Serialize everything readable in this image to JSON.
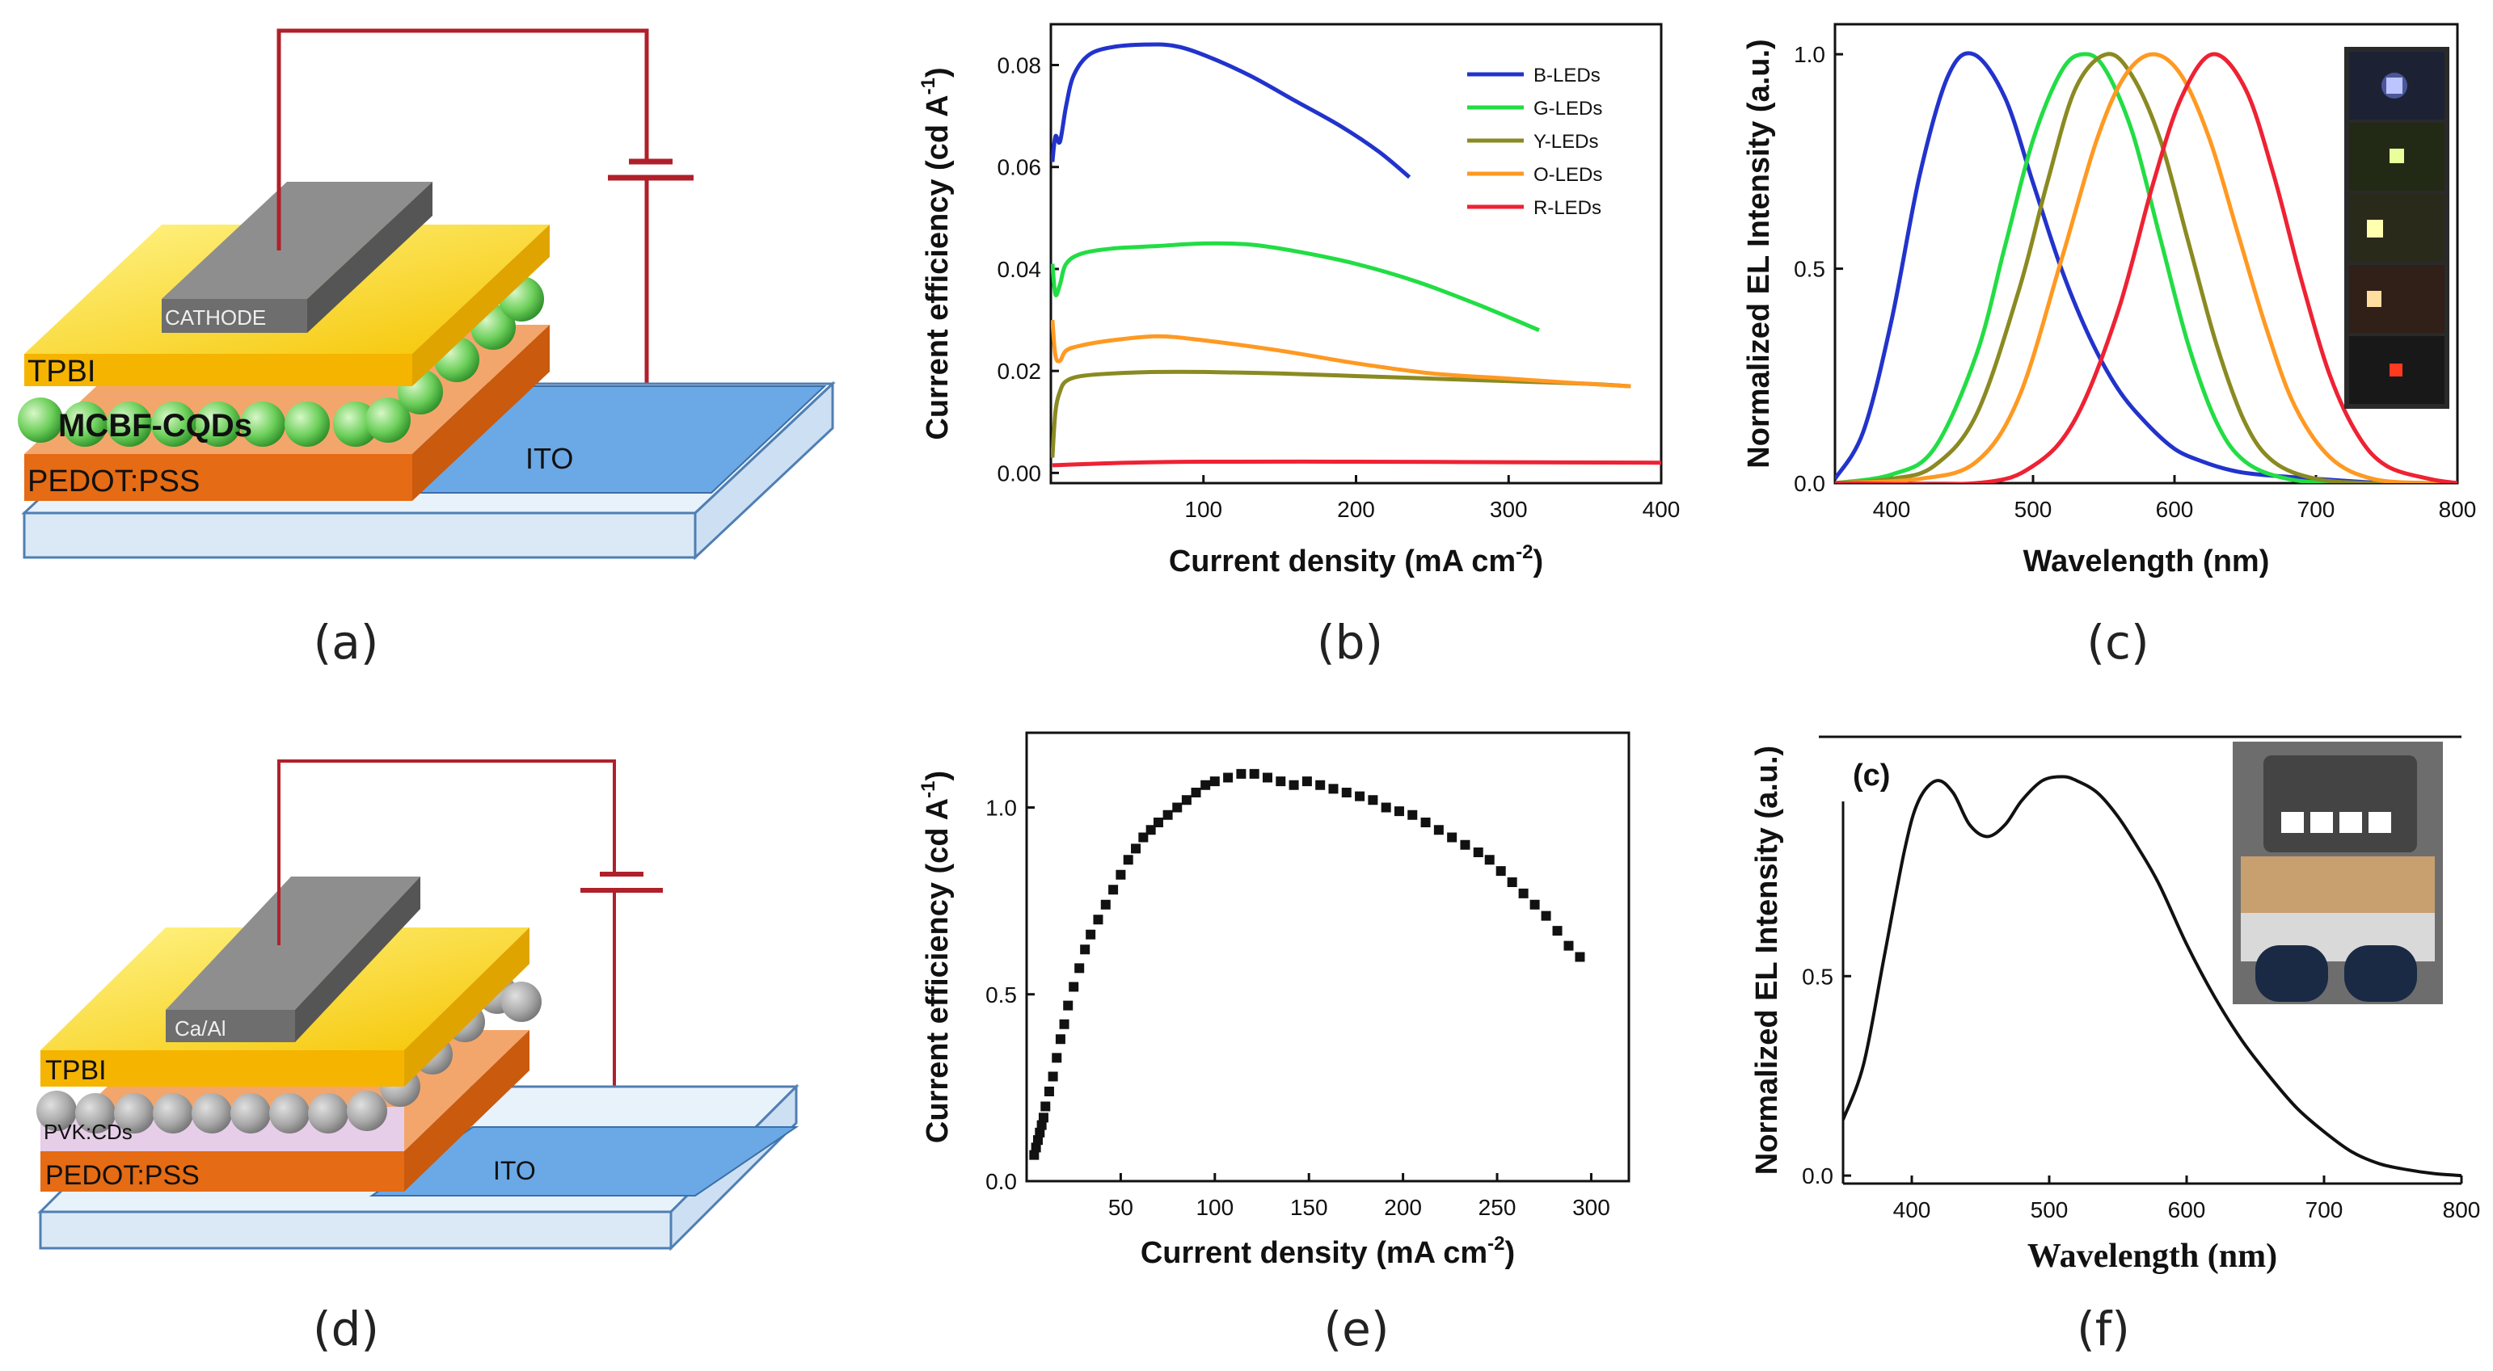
{
  "panel_labels": [
    "(a)",
    "(b)",
    "(c)",
    "(d)",
    "(e)",
    "(f)"
  ],
  "diagram_a": {
    "layers": {
      "cathode": "CATHODE",
      "tpbi": "TPBI",
      "emitter": "MCBF-CQDs",
      "pedot": "PEDOT:PSS",
      "ito": "ITO"
    }
  },
  "diagram_d": {
    "layers": {
      "cathode": "Ca/Al",
      "tpbi": "TPBI",
      "emitter": "PVK:CDs",
      "pedot": "PEDOT:PSS",
      "ito": "ITO"
    }
  },
  "colors": {
    "blue": "#2233cc",
    "green": "#22dd44",
    "yellow": "#8a8a22",
    "orange": "#ff9922",
    "red": "#ee2233",
    "black": "#111111",
    "wire": "#b0202a"
  },
  "chart_data": [
    {
      "id": "b",
      "type": "line",
      "xlabel": "Current density (mA cm",
      "xlabel_sup": "-2",
      "xlabel_end": ")",
      "ylabel": "Current efficiency (cd A",
      "ylabel_sup": "-1",
      "ylabel_end": ")",
      "xlim": [
        0,
        400
      ],
      "ylim": [
        -0.002,
        0.088
      ],
      "xticks": [
        100,
        200,
        300,
        400
      ],
      "yticks": [
        0.0,
        0.02,
        0.04,
        0.06,
        0.08
      ],
      "ytick_labels": [
        "0.00",
        "0.02",
        "0.04",
        "0.06",
        "0.08"
      ],
      "legend": "top-right",
      "series": [
        {
          "name": "B-LEDs",
          "color": "blue",
          "x": [
            1,
            3,
            6,
            10,
            15,
            25,
            40,
            60,
            80,
            100,
            130,
            160,
            190,
            215,
            235
          ],
          "y": [
            0.061,
            0.066,
            0.065,
            0.072,
            0.078,
            0.082,
            0.0835,
            0.084,
            0.0838,
            0.082,
            0.078,
            0.073,
            0.068,
            0.063,
            0.058
          ]
        },
        {
          "name": "G-LEDs",
          "color": "green",
          "x": [
            1,
            3,
            6,
            10,
            20,
            40,
            70,
            100,
            130,
            160,
            200,
            240,
            280,
            320
          ],
          "y": [
            0.041,
            0.035,
            0.037,
            0.041,
            0.043,
            0.044,
            0.0445,
            0.045,
            0.0448,
            0.0435,
            0.041,
            0.0375,
            0.033,
            0.028
          ]
        },
        {
          "name": "Y-LEDs",
          "color": "yellow",
          "x": [
            1,
            3,
            6,
            10,
            20,
            40,
            70,
            100,
            150,
            200,
            250,
            300,
            350,
            380
          ],
          "y": [
            0.003,
            0.012,
            0.016,
            0.018,
            0.019,
            0.0195,
            0.0198,
            0.0198,
            0.0195,
            0.019,
            0.0185,
            0.018,
            0.0175,
            0.017
          ]
        },
        {
          "name": "O-LEDs",
          "color": "orange",
          "x": [
            1,
            3,
            6,
            10,
            20,
            40,
            70,
            100,
            150,
            200,
            250,
            300,
            350,
            380
          ],
          "y": [
            0.03,
            0.023,
            0.022,
            0.024,
            0.025,
            0.026,
            0.0268,
            0.026,
            0.024,
            0.0215,
            0.0195,
            0.0185,
            0.0175,
            0.017
          ]
        },
        {
          "name": "R-LEDs",
          "color": "red",
          "x": [
            1,
            50,
            100,
            200,
            300,
            400
          ],
          "y": [
            0.0015,
            0.002,
            0.0022,
            0.0022,
            0.0021,
            0.002
          ]
        }
      ]
    },
    {
      "id": "c",
      "type": "line",
      "xlabel": "Wavelength (nm)",
      "ylabel": "Normalized EL Intensity (a.u.)",
      "xlim": [
        360,
        800
      ],
      "ylim": [
        0,
        1.07
      ],
      "xticks": [
        400,
        500,
        600,
        700,
        800
      ],
      "yticks": [
        0.0,
        0.5,
        1.0
      ],
      "ytick_labels": [
        "0.0",
        "0.5",
        "1.0"
      ],
      "series": [
        {
          "color": "blue",
          "x": [
            360,
            380,
            400,
            420,
            440,
            458,
            480,
            500,
            520,
            540,
            560,
            580,
            600,
            620,
            640,
            660,
            700,
            750,
            800
          ],
          "y": [
            0.01,
            0.12,
            0.38,
            0.72,
            0.95,
            1.0,
            0.9,
            0.7,
            0.5,
            0.34,
            0.22,
            0.14,
            0.08,
            0.05,
            0.03,
            0.02,
            0.01,
            0.0,
            0.0
          ]
        },
        {
          "color": "green",
          "x": [
            360,
            400,
            430,
            460,
            480,
            500,
            520,
            535,
            550,
            570,
            590,
            610,
            630,
            650,
            680,
            720,
            800
          ],
          "y": [
            0.0,
            0.02,
            0.08,
            0.3,
            0.55,
            0.8,
            0.96,
            1.0,
            0.97,
            0.82,
            0.57,
            0.32,
            0.14,
            0.05,
            0.01,
            0.0,
            0.0
          ]
        },
        {
          "color": "yellow",
          "x": [
            360,
            400,
            430,
            460,
            490,
            510,
            530,
            552,
            570,
            590,
            610,
            630,
            650,
            670,
            700,
            740,
            800
          ],
          "y": [
            0.0,
            0.01,
            0.04,
            0.16,
            0.45,
            0.7,
            0.92,
            1.0,
            0.95,
            0.8,
            0.56,
            0.32,
            0.14,
            0.05,
            0.01,
            0.0,
            0.0
          ]
        },
        {
          "color": "orange",
          "x": [
            360,
            420,
            460,
            490,
            520,
            545,
            565,
            585,
            605,
            625,
            645,
            665,
            685,
            710,
            740,
            780,
            800
          ],
          "y": [
            0.0,
            0.01,
            0.05,
            0.2,
            0.52,
            0.8,
            0.95,
            1.0,
            0.95,
            0.8,
            0.58,
            0.36,
            0.18,
            0.06,
            0.01,
            0.0,
            0.0
          ]
        },
        {
          "color": "red",
          "x": [
            360,
            460,
            500,
            530,
            560,
            585,
            605,
            627,
            650,
            670,
            690,
            710,
            730,
            750,
            780,
            800
          ],
          "y": [
            0.0,
            0.0,
            0.04,
            0.15,
            0.4,
            0.7,
            0.9,
            1.0,
            0.92,
            0.72,
            0.47,
            0.25,
            0.11,
            0.04,
            0.01,
            0.0
          ]
        }
      ]
    },
    {
      "id": "e",
      "type": "scatter",
      "xlabel": "Current density (mA cm",
      "xlabel_sup": "-2",
      "xlabel_end": ")",
      "ylabel": "Current efficiency (cd A",
      "ylabel_sup": "-1",
      "ylabel_end": ")",
      "xlim": [
        0,
        320
      ],
      "ylim": [
        0,
        1.2
      ],
      "xticks": [
        50,
        100,
        150,
        200,
        250,
        300
      ],
      "yticks": [
        0.0,
        0.5,
        1.0
      ],
      "ytick_labels": [
        "0.0",
        "0.5",
        "1.0"
      ],
      "series": [
        {
          "color": "black",
          "x": [
            4,
            5,
            6,
            7,
            8,
            9,
            10,
            12,
            14,
            16,
            18,
            20,
            22,
            25,
            28,
            31,
            34,
            38,
            42,
            46,
            50,
            54,
            58,
            62,
            66,
            70,
            75,
            80,
            85,
            90,
            95,
            100,
            107,
            114,
            121,
            128,
            135,
            142,
            149,
            156,
            163,
            170,
            177,
            184,
            191,
            198,
            205,
            212,
            219,
            226,
            233,
            240,
            246,
            252,
            258,
            264,
            270,
            276,
            282,
            288,
            294
          ],
          "y": [
            0.07,
            0.09,
            0.11,
            0.13,
            0.15,
            0.17,
            0.2,
            0.24,
            0.28,
            0.33,
            0.38,
            0.42,
            0.47,
            0.52,
            0.57,
            0.62,
            0.66,
            0.7,
            0.74,
            0.78,
            0.82,
            0.86,
            0.89,
            0.92,
            0.94,
            0.96,
            0.98,
            1.0,
            1.02,
            1.04,
            1.06,
            1.07,
            1.08,
            1.09,
            1.09,
            1.08,
            1.07,
            1.06,
            1.07,
            1.06,
            1.05,
            1.04,
            1.03,
            1.02,
            1.0,
            0.99,
            0.98,
            0.96,
            0.94,
            0.92,
            0.9,
            0.88,
            0.86,
            0.83,
            0.8,
            0.77,
            0.74,
            0.71,
            0.67,
            0.63,
            0.6
          ]
        }
      ]
    },
    {
      "id": "f",
      "type": "line",
      "inner_label": "(c)",
      "xlabel": "Wavelength (nm)",
      "ylabel": "Normalized EL Intensity (a.u.)",
      "xlim": [
        350,
        800
      ],
      "ylim": [
        -0.02,
        1.1
      ],
      "xticks": [
        400,
        500,
        600,
        700,
        800
      ],
      "yticks": [
        0.0,
        0.5
      ],
      "ytick_labels": [
        "0.0",
        "0.5"
      ],
      "series": [
        {
          "color": "black",
          "x": [
            350,
            365,
            380,
            395,
            405,
            418,
            430,
            442,
            455,
            468,
            480,
            495,
            510,
            520,
            535,
            550,
            565,
            580,
            600,
            620,
            640,
            660,
            680,
            700,
            720,
            740,
            760,
            780,
            800
          ],
          "y": [
            0.14,
            0.28,
            0.55,
            0.82,
            0.94,
            0.99,
            0.96,
            0.88,
            0.85,
            0.88,
            0.94,
            0.99,
            1.0,
            0.99,
            0.96,
            0.9,
            0.82,
            0.73,
            0.58,
            0.45,
            0.34,
            0.25,
            0.17,
            0.11,
            0.06,
            0.03,
            0.015,
            0.005,
            0.0
          ]
        }
      ]
    }
  ]
}
